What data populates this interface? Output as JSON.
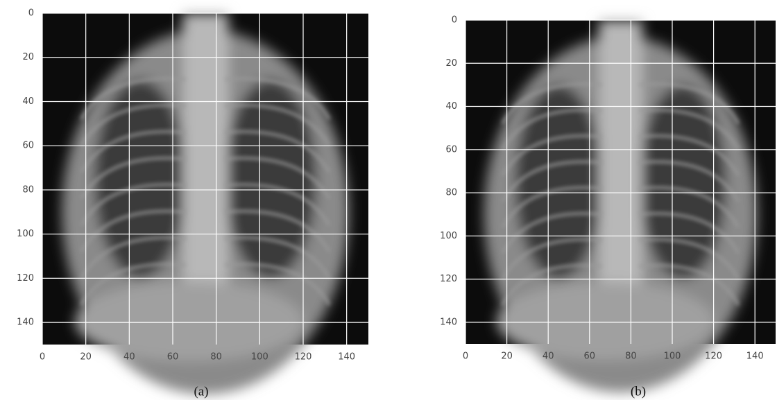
{
  "chart_data": [
    {
      "type": "image",
      "caption": "(a)",
      "xlim": [
        0,
        150
      ],
      "ylim": [
        150,
        0
      ],
      "xticks": [
        0,
        20,
        40,
        60,
        80,
        100,
        120,
        140
      ],
      "yticks": [
        0,
        20,
        40,
        60,
        80,
        100,
        120,
        140
      ],
      "grid": true,
      "grid_color": "#ffffff"
    },
    {
      "type": "image",
      "caption": "(b)",
      "xlim": [
        0,
        150
      ],
      "ylim": [
        150,
        0
      ],
      "xticks": [
        0,
        20,
        40,
        60,
        80,
        100,
        120,
        140
      ],
      "yticks": [
        0,
        20,
        40,
        60,
        80,
        100,
        120,
        140
      ],
      "grid": true,
      "grid_color": "#ffffff"
    }
  ]
}
